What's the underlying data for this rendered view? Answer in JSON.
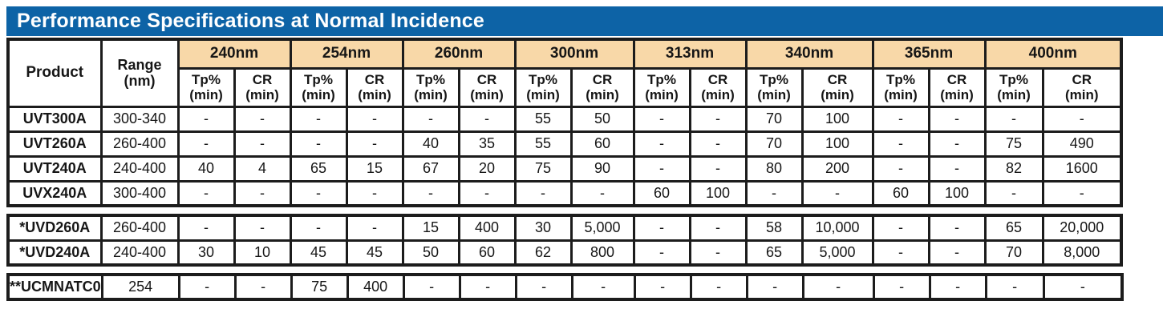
{
  "title": "Performance Specifications at Normal Incidence",
  "colors": {
    "title_bar": "#0d63a6",
    "title_text": "#ffffff",
    "wavelength_header_bg": "#f8d8a8",
    "border": "#1c1c1c"
  },
  "header": {
    "product": "Product",
    "range_line1": "Range",
    "range_line2": "(nm)",
    "wavelengths": [
      "240nm",
      "254nm",
      "260nm",
      "300nm",
      "313nm",
      "340nm",
      "365nm",
      "400nm"
    ],
    "tp_label_line1": "Tp%",
    "tp_label_line2": "(min)",
    "cr_label_line1": "CR",
    "cr_label_line2": "(min)"
  },
  "blocks": [
    {
      "name": "uvt-uvx-filters",
      "rows": [
        {
          "product": "UVT300A",
          "range": "300-340",
          "values": [
            "-",
            "-",
            "-",
            "-",
            "-",
            "-",
            "55",
            "50",
            "-",
            "-",
            "70",
            "100",
            "-",
            "-",
            "-",
            "-"
          ]
        },
        {
          "product": "UVT260A",
          "range": "260-400",
          "values": [
            "-",
            "-",
            "-",
            "-",
            "40",
            "35",
            "55",
            "60",
            "-",
            "-",
            "70",
            "100",
            "-",
            "-",
            "75",
            "490"
          ]
        },
        {
          "product": "UVT240A",
          "range": "240-400",
          "values": [
            "40",
            "4",
            "65",
            "15",
            "67",
            "20",
            "75",
            "90",
            "-",
            "-",
            "80",
            "200",
            "-",
            "-",
            "82",
            "1600"
          ]
        },
        {
          "product": "UVX240A",
          "range": "300-400",
          "values": [
            "-",
            "-",
            "-",
            "-",
            "-",
            "-",
            "-",
            "-",
            "60",
            "100",
            "-",
            "-",
            "60",
            "100",
            "-",
            "-"
          ]
        }
      ]
    },
    {
      "name": "uvd-filters",
      "rows": [
        {
          "product": "*UVD260A",
          "range": "260-400",
          "values": [
            "-",
            "-",
            "-",
            "-",
            "15",
            "400",
            "30",
            "5,000",
            "-",
            "-",
            "58",
            "10,000",
            "-",
            "-",
            "65",
            "20,000"
          ]
        },
        {
          "product": "*UVD240A",
          "range": "240-400",
          "values": [
            "30",
            "10",
            "45",
            "45",
            "50",
            "60",
            "62",
            "800",
            "-",
            "-",
            "65",
            "5,000",
            "-",
            "-",
            "70",
            "8,000"
          ]
        }
      ]
    },
    {
      "name": "ucmnatc0-filter",
      "rows": [
        {
          "product": "**UCMNATC0",
          "range": "254",
          "values": [
            "-",
            "-",
            "75",
            "400",
            "-",
            "-",
            "-",
            "-",
            "-",
            "-",
            "-",
            "-",
            "-",
            "-",
            "-",
            "-"
          ]
        }
      ]
    }
  ]
}
